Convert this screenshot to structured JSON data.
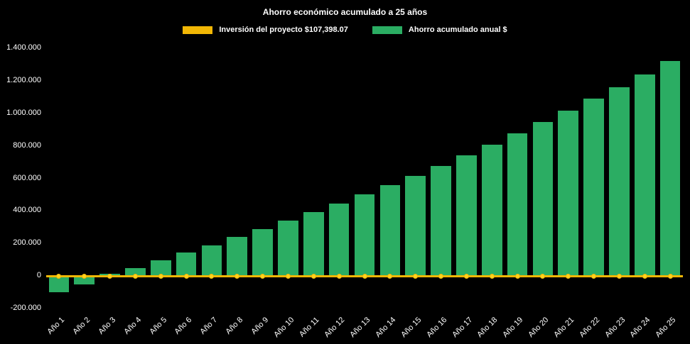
{
  "chart": {
    "title": "Ahorro económico acumulado a 25 años",
    "background": "#000000",
    "text_color": "#ffffff",
    "legend": [
      {
        "label": "Inversión del proyecto $107,398.07",
        "color": "#f2b705",
        "type": "line"
      },
      {
        "label": "Ahorro acumulado anual $",
        "color": "#2bad63",
        "type": "bar"
      }
    ]
  },
  "chart_data": {
    "type": "bar",
    "title": "Ahorro económico acumulado a 25 años",
    "xlabel": "",
    "ylabel": "",
    "grid": false,
    "legend_position": "top",
    "ylim": [
      -200000,
      1400000
    ],
    "ytick_interval": 200000,
    "yticks": [
      {
        "value": 1400000,
        "label": "1.400.000"
      },
      {
        "value": 1200000,
        "label": "1.200.000"
      },
      {
        "value": 1000000,
        "label": "1.000.000"
      },
      {
        "value": 800000,
        "label": "800.000"
      },
      {
        "value": 600000,
        "label": "600.000"
      },
      {
        "value": 400000,
        "label": "400.000"
      },
      {
        "value": 200000,
        "label": "200.000"
      },
      {
        "value": 0,
        "label": "0"
      },
      {
        "value": -200000,
        "label": "-200.000"
      }
    ],
    "categories": [
      "Año 1",
      "Año 2",
      "Año 3",
      "Año 4",
      "Año 5",
      "Año 6",
      "Año 7",
      "Año 8",
      "Año 9",
      "Año 10",
      "Año 11",
      "Año 12",
      "Año 13",
      "Año 14",
      "Año 15",
      "Año 16",
      "Año 17",
      "Año 18",
      "Año 19",
      "Año 20",
      "Año 21",
      "Año 22",
      "Año 23",
      "Año 24",
      "Año 25"
    ],
    "series": [
      {
        "name": "Ahorro acumulado anual $",
        "type": "bar",
        "color": "#2bad63",
        "values": [
          -100000,
          -50000,
          15000,
          50000,
          95000,
          145000,
          190000,
          240000,
          290000,
          340000,
          395000,
          445000,
          500000,
          560000,
          615000,
          675000,
          740000,
          805000,
          875000,
          945000,
          1015000,
          1090000,
          1160000,
          1240000,
          1320000
        ]
      },
      {
        "name": "Inversión del proyecto $107,398.07",
        "type": "line",
        "color": "#f2b705",
        "marker_color": "#ffd21f",
        "markers": true,
        "constant_value": 0
      }
    ]
  }
}
